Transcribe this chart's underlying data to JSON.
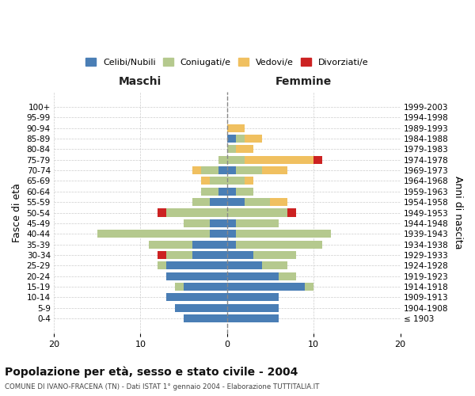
{
  "age_groups": [
    "100+",
    "95-99",
    "90-94",
    "85-89",
    "80-84",
    "75-79",
    "70-74",
    "65-69",
    "60-64",
    "55-59",
    "50-54",
    "45-49",
    "40-44",
    "35-39",
    "30-34",
    "25-29",
    "20-24",
    "15-19",
    "10-14",
    "5-9",
    "0-4"
  ],
  "birth_years": [
    "≤ 1903",
    "1904-1908",
    "1909-1913",
    "1914-1918",
    "1919-1923",
    "1924-1928",
    "1929-1933",
    "1934-1938",
    "1939-1943",
    "1944-1948",
    "1949-1953",
    "1954-1958",
    "1959-1963",
    "1964-1968",
    "1969-1973",
    "1974-1978",
    "1979-1983",
    "1984-1988",
    "1989-1993",
    "1994-1998",
    "1999-2003"
  ],
  "maschi": {
    "celibi": [
      0,
      0,
      0,
      0,
      0,
      0,
      1,
      0,
      1,
      2,
      0,
      2,
      2,
      4,
      4,
      7,
      7,
      5,
      7,
      6,
      5
    ],
    "coniugati": [
      0,
      0,
      0,
      0,
      0,
      1,
      2,
      2,
      2,
      2,
      7,
      3,
      13,
      5,
      3,
      1,
      0,
      1,
      0,
      0,
      0
    ],
    "vedovi": [
      0,
      0,
      0,
      0,
      0,
      0,
      1,
      1,
      0,
      0,
      0,
      0,
      0,
      0,
      0,
      0,
      0,
      0,
      0,
      0,
      0
    ],
    "divorziati": [
      0,
      0,
      0,
      0,
      0,
      0,
      0,
      0,
      0,
      0,
      1,
      0,
      0,
      0,
      1,
      0,
      0,
      0,
      0,
      0,
      0
    ]
  },
  "femmine": {
    "nubili": [
      0,
      0,
      0,
      1,
      0,
      0,
      1,
      0,
      1,
      2,
      0,
      1,
      1,
      1,
      3,
      4,
      6,
      9,
      6,
      6,
      6
    ],
    "coniugate": [
      0,
      0,
      0,
      1,
      1,
      2,
      3,
      2,
      2,
      3,
      7,
      5,
      11,
      10,
      5,
      3,
      2,
      1,
      0,
      0,
      0
    ],
    "vedove": [
      0,
      0,
      2,
      2,
      2,
      8,
      3,
      1,
      0,
      2,
      0,
      0,
      0,
      0,
      0,
      0,
      0,
      0,
      0,
      0,
      0
    ],
    "divorziate": [
      0,
      0,
      0,
      0,
      0,
      1,
      0,
      0,
      0,
      0,
      1,
      0,
      0,
      0,
      0,
      0,
      0,
      0,
      0,
      0,
      0
    ]
  },
  "colors": {
    "celibi_nubili": "#4a7eb5",
    "coniugati": "#b5c98e",
    "vedovi": "#f0c060",
    "divorziati": "#cc2222"
  },
  "xlim": 20,
  "title": "Popolazione per età, sesso e stato civile - 2004",
  "subtitle": "COMUNE DI IVANO-FRACENA (TN) - Dati ISTAT 1° gennaio 2004 - Elaborazione TUTTITALIA.IT",
  "ylabel_left": "Fasce di età",
  "ylabel_right": "Anni di nascita",
  "xlabel_left": "Maschi",
  "xlabel_right": "Femmine",
  "background_color": "#ffffff",
  "grid_color": "#cccccc"
}
